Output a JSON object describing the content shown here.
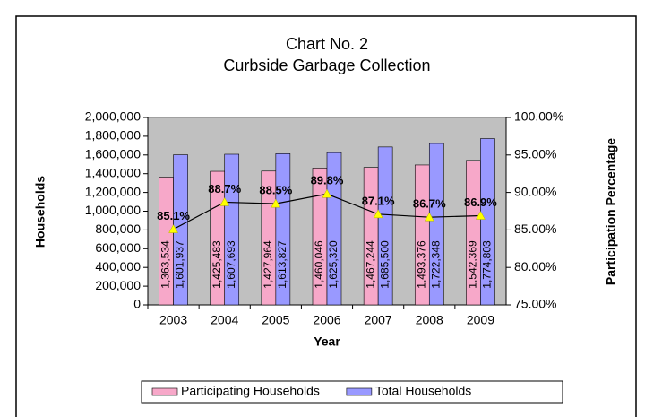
{
  "chart_data": {
    "type": "bar",
    "title": "Chart No. 2",
    "subtitle": "Curbside Garbage Collection",
    "x_label": "Year",
    "y_label": "Households",
    "y2_label": "Participation Percentage",
    "categories": [
      "2003",
      "2004",
      "2005",
      "2006",
      "2007",
      "2008",
      "2009"
    ],
    "series": [
      {
        "name": "Participating Households",
        "color": "#f7a8c9",
        "values": [
          1363534,
          1425483,
          1427964,
          1460046,
          1467244,
          1493376,
          1542369
        ],
        "value_labels": [
          "1,363,534",
          "1,425,483",
          "1,427,964",
          "1,460,046",
          "1,467,244",
          "1,493,376",
          "1,542,369"
        ]
      },
      {
        "name": "Total Households",
        "color": "#9999ff",
        "values": [
          1601937,
          1607693,
          1613827,
          1625320,
          1685500,
          1722348,
          1774803
        ],
        "value_labels": [
          "1,601,937",
          "1,607,693",
          "1,613,827",
          "1,625,320",
          "1,685,500",
          "1,722,348",
          "1,774,803"
        ]
      },
      {
        "type": "line",
        "axis": "y2",
        "color": "#000000",
        "marker_color": "#ffff00",
        "values": [
          85.1,
          88.7,
          88.5,
          89.8,
          87.1,
          86.7,
          86.9
        ],
        "value_labels": [
          "85.1%",
          "88.7%",
          "88.5%",
          "89.8%",
          "87.1%",
          "86.7%",
          "86.9%"
        ]
      }
    ],
    "ylim": [
      0,
      2000000
    ],
    "yticks": [
      0,
      {
        "value": 200000,
        "label": "200,000"
      },
      {
        "value": 400000,
        "label": "400,000"
      },
      {
        "value": 600000,
        "label": "600,000"
      },
      {
        "value": 800000,
        "label": "800,000"
      },
      {
        "value": 1000000,
        "label": "1,000,000"
      },
      {
        "value": 1200000,
        "label": "1,200,000"
      },
      {
        "value": 1400000,
        "label": "1,400,000"
      },
      {
        "value": 1600000,
        "label": "1,600,000"
      },
      {
        "value": 1800000,
        "label": "1,800,000"
      },
      {
        "value": 2000000,
        "label": "2,000,000"
      }
    ],
    "y2lim": [
      75,
      100
    ],
    "y2ticks": [
      {
        "value": 75,
        "label": "75.00%"
      },
      {
        "value": 80,
        "label": "80.00%"
      },
      {
        "value": 85,
        "label": "85.00%"
      },
      {
        "value": 90,
        "label": "90.00%"
      },
      {
        "value": 95,
        "label": "95.00%"
      },
      {
        "value": 100,
        "label": "100.00%"
      }
    ],
    "plot_background": "#c0c0c0",
    "legend": "bottom"
  }
}
